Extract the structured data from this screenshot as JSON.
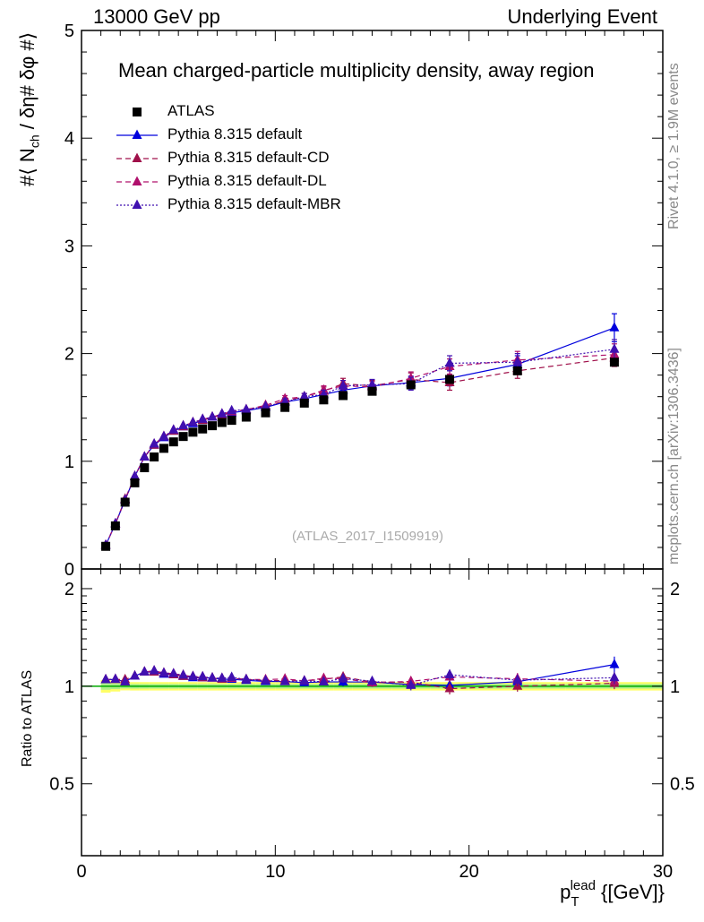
{
  "header": {
    "left": "13000 GeV pp",
    "right": "Underlying Event"
  },
  "side_labels": {
    "rivet": "Rivet 4.1.0, ≥ 1.9M events",
    "mcplots": "mcplots.cern.ch [arXiv:1306.3436]"
  },
  "axes": {
    "ylabel_main": "#⟨ N",
    "ylabel_main_sub": "ch",
    "ylabel_main_rest": "/ δη# δφ #⟩",
    "ylabel_ratio": "Ratio to ATLAS",
    "xlabel_p": "p",
    "xlabel_sub": "T",
    "xlabel_sup": "lead",
    "xlabel_unit": "{[GeV]}"
  },
  "plot_title": "Mean charged-particle multiplicity density, away region",
  "analysis_id": "(ATLAS_2017_I1509919)",
  "legend": [
    {
      "label": "ATLAS",
      "key": "atlas"
    },
    {
      "label": "Pythia 8.315 default",
      "key": "default"
    },
    {
      "label": "Pythia 8.315 default-CD",
      "key": "cd"
    },
    {
      "label": "Pythia 8.315 default-DL",
      "key": "dl"
    },
    {
      "label": "Pythia 8.315 default-MBR",
      "key": "mbr"
    }
  ],
  "colors": {
    "atlas": "#000000",
    "default": "#0000dd",
    "cd": "#a0104a",
    "dl": "#b0106c",
    "mbr": "#4010b0",
    "band_yellow": "#ffff66",
    "band_green": "#aaf088",
    "ref_line": "#00aa00"
  },
  "chart_data": {
    "type": "scatter",
    "title": "Mean charged-particle multiplicity density, away region",
    "xlabel": "p_T^lead [GeV]",
    "ylabel": "#<N_ch / dη dφ>",
    "xlim": [
      0,
      30
    ],
    "ylim": [
      0,
      5
    ],
    "ratio_ylim": [
      0.3,
      2.3
    ],
    "x_ticks": [
      0,
      10,
      20,
      30
    ],
    "x_tick_labels": [
      "0",
      "10",
      "20",
      "30"
    ],
    "y_ticks": [
      0,
      1,
      2,
      3,
      4,
      5
    ],
    "y_tick_labels": [
      "0",
      "1",
      "2",
      "3",
      "4",
      "5"
    ],
    "ratio_y_ticks": [
      0.5,
      1,
      2
    ],
    "ratio_y_tick_labels": [
      "0.5",
      "1",
      "2"
    ],
    "x": [
      1.25,
      1.75,
      2.25,
      2.75,
      3.25,
      3.75,
      4.25,
      4.75,
      5.25,
      5.75,
      6.25,
      6.75,
      7.25,
      7.75,
      8.5,
      9.5,
      10.5,
      11.5,
      12.5,
      13.5,
      15.0,
      17.0,
      19.0,
      22.5,
      27.5
    ],
    "series": [
      {
        "name": "ATLAS",
        "key": "atlas",
        "values": [
          0.21,
          0.4,
          0.62,
          0.8,
          0.94,
          1.04,
          1.12,
          1.18,
          1.23,
          1.27,
          1.3,
          1.33,
          1.36,
          1.38,
          1.41,
          1.45,
          1.5,
          1.54,
          1.57,
          1.61,
          1.65,
          1.71,
          1.76,
          1.84,
          1.92
        ]
      },
      {
        "name": "Pythia 8.315 default",
        "key": "default",
        "values": [
          0.22,
          0.42,
          0.64,
          0.86,
          1.04,
          1.15,
          1.22,
          1.28,
          1.32,
          1.35,
          1.38,
          1.41,
          1.43,
          1.45,
          1.47,
          1.5,
          1.55,
          1.58,
          1.62,
          1.66,
          1.7,
          1.73,
          1.77,
          1.9,
          2.24
        ],
        "errors": [
          0.01,
          0.01,
          0.01,
          0.01,
          0.01,
          0.01,
          0.01,
          0.01,
          0.01,
          0.01,
          0.01,
          0.01,
          0.01,
          0.01,
          0.02,
          0.02,
          0.03,
          0.03,
          0.04,
          0.05,
          0.05,
          0.06,
          0.07,
          0.08,
          0.13
        ]
      },
      {
        "name": "Pythia 8.315 default-CD",
        "key": "cd",
        "values": [
          0.22,
          0.42,
          0.65,
          0.86,
          1.04,
          1.15,
          1.23,
          1.28,
          1.32,
          1.36,
          1.38,
          1.41,
          1.43,
          1.46,
          1.48,
          1.51,
          1.56,
          1.6,
          1.65,
          1.72,
          1.7,
          1.76,
          1.73,
          1.84,
          1.96
        ],
        "errors": [
          0.01,
          0.01,
          0.01,
          0.01,
          0.01,
          0.01,
          0.01,
          0.01,
          0.01,
          0.01,
          0.01,
          0.01,
          0.01,
          0.01,
          0.02,
          0.02,
          0.03,
          0.03,
          0.04,
          0.05,
          0.05,
          0.06,
          0.07,
          0.07,
          0.08
        ]
      },
      {
        "name": "Pythia 8.315 default-DL",
        "key": "dl",
        "values": [
          0.22,
          0.42,
          0.64,
          0.86,
          1.04,
          1.16,
          1.23,
          1.29,
          1.33,
          1.36,
          1.39,
          1.41,
          1.44,
          1.46,
          1.48,
          1.52,
          1.58,
          1.6,
          1.66,
          1.7,
          1.69,
          1.77,
          1.88,
          1.94,
          1.99
        ],
        "errors": [
          0.01,
          0.01,
          0.01,
          0.01,
          0.01,
          0.01,
          0.01,
          0.01,
          0.01,
          0.01,
          0.01,
          0.01,
          0.01,
          0.01,
          0.02,
          0.02,
          0.03,
          0.03,
          0.04,
          0.05,
          0.05,
          0.06,
          0.07,
          0.08,
          0.1
        ]
      },
      {
        "name": "Pythia 8.315 default-MBR",
        "key": "mbr",
        "values": [
          0.22,
          0.42,
          0.64,
          0.86,
          1.04,
          1.16,
          1.23,
          1.29,
          1.33,
          1.36,
          1.39,
          1.41,
          1.44,
          1.47,
          1.48,
          1.51,
          1.55,
          1.6,
          1.62,
          1.7,
          1.71,
          1.72,
          1.91,
          1.92,
          2.04
        ],
        "errors": [
          0.01,
          0.01,
          0.01,
          0.01,
          0.01,
          0.01,
          0.01,
          0.01,
          0.01,
          0.01,
          0.01,
          0.01,
          0.01,
          0.01,
          0.02,
          0.02,
          0.03,
          0.03,
          0.04,
          0.05,
          0.05,
          0.06,
          0.07,
          0.08,
          0.09
        ]
      }
    ]
  }
}
